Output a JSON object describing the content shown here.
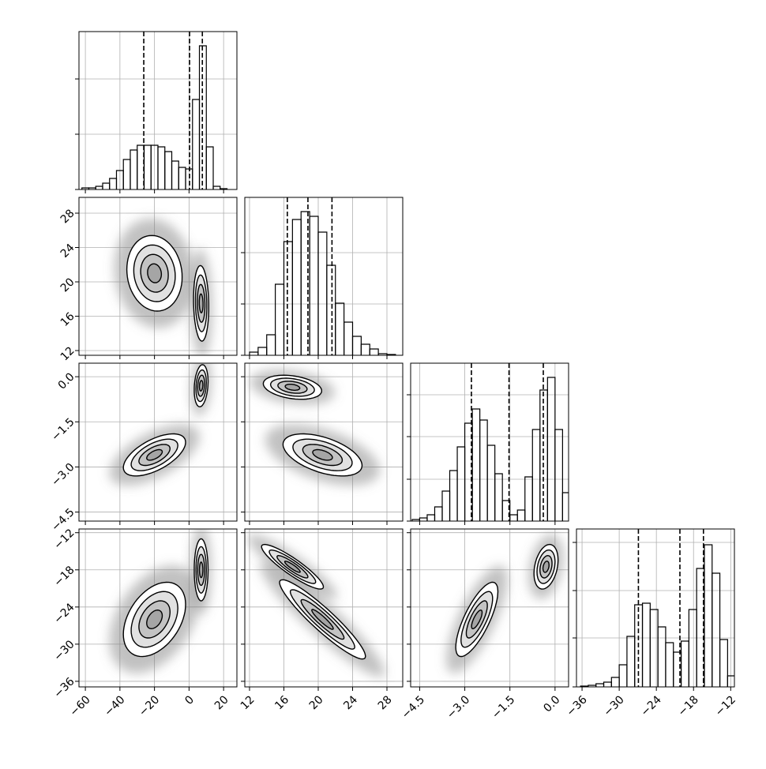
{
  "chart_data": {
    "type": "corner",
    "color": "#000000",
    "grid": true,
    "contour_levels": [
      0.5,
      1,
      1.5,
      2
    ],
    "params": [
      {
        "xlim": [
          -63.7,
          27.7
        ],
        "ticks": [
          {
            "value": -60,
            "label": "−60"
          },
          {
            "value": -40,
            "label": "−40"
          },
          {
            "value": -20,
            "label": "−20"
          },
          0,
          20
        ],
        "quantiles": [
          -26.2,
          0.3,
          7.7
        ],
        "hist": {
          "ylim": [
            0,
            1
          ],
          "yticks": [
            0,
            0.35,
            0.7
          ],
          "bins": [
            -62,
            -58,
            -54,
            -50,
            -46,
            -42,
            -38,
            -34,
            -30,
            -26,
            -22,
            -18,
            -14,
            -10,
            -6,
            -2,
            2,
            6,
            10,
            14,
            18,
            22
          ],
          "values": [
            0.01,
            0.01,
            0.02,
            0.04,
            0.07,
            0.12,
            0.19,
            0.25,
            0.28,
            0.28,
            0.28,
            0.27,
            0.24,
            0.18,
            0.14,
            0.13,
            0.57,
            0.91,
            0.27,
            0.02,
            0.005
          ]
        }
      },
      {
        "xlim": [
          11.45,
          29.84
        ],
        "ticks": [
          12,
          16,
          20,
          24,
          28
        ],
        "quantiles": [
          16.4,
          18.8,
          21.6
        ],
        "hist": {
          "ylim": [
            0,
            1
          ],
          "yticks": [
            0,
            0.325,
            0.65
          ],
          "bins": [
            12,
            13,
            14,
            15,
            16,
            17,
            18,
            19,
            20,
            21,
            22,
            23,
            24,
            25,
            26,
            27,
            28,
            29
          ],
          "values": [
            0.02,
            0.05,
            0.13,
            0.45,
            0.72,
            0.86,
            0.91,
            0.88,
            0.78,
            0.57,
            0.33,
            0.21,
            0.12,
            0.07,
            0.04,
            0.01,
            0.005
          ]
        }
      },
      {
        "xlim": [
          -4.8,
          0.45
        ],
        "ticks": [
          {
            "value": -4.5,
            "label": "−4.5"
          },
          {
            "value": -3,
            "label": "−3.0"
          },
          {
            "value": -1.5,
            "label": "−1.5"
          },
          {
            "value": 0,
            "label": "0.0"
          }
        ],
        "quantiles": [
          -2.78,
          -1.53,
          -0.39
        ],
        "hist": {
          "ylim": [
            0,
            1
          ],
          "yticks": [
            0,
            0.265,
            0.535,
            0.8
          ],
          "bins": [
            -4.75,
            -4.5,
            -4.25,
            -4,
            -3.75,
            -3.5,
            -3.25,
            -3,
            -2.75,
            -2.5,
            -2.25,
            -2,
            -1.75,
            -1.5,
            -1.25,
            -1,
            -0.75,
            -0.5,
            -0.25,
            0,
            0.25,
            0.5
          ],
          "values": [
            0.01,
            0.02,
            0.04,
            0.09,
            0.19,
            0.32,
            0.47,
            0.62,
            0.71,
            0.64,
            0.48,
            0.3,
            0.13,
            0.04,
            0.07,
            0.28,
            0.58,
            0.83,
            0.91,
            0.58,
            0.18
          ]
        }
      },
      {
        "xlim": [
          -36.9,
          -11.4
        ],
        "ticks": [
          {
            "value": -36,
            "label": "−36"
          },
          {
            "value": -30,
            "label": "−30"
          },
          {
            "value": -24,
            "label": "−24"
          },
          {
            "value": -18,
            "label": "−18"
          },
          {
            "value": -12,
            "label": "−12"
          }
        ],
        "quantiles": [
          -26.9,
          -20.2,
          -16.4
        ],
        "hist": {
          "ylim": [
            0,
            1
          ],
          "yticks": [
            0,
            0.31,
            0.61,
            0.915
          ],
          "bins": [
            -36.25,
            -35,
            -33.75,
            -32.5,
            -31.25,
            -30,
            -28.75,
            -27.5,
            -26.25,
            -25,
            -23.75,
            -22.5,
            -21.25,
            -20,
            -18.75,
            -17.5,
            -16.25,
            -15,
            -13.75,
            -12.5,
            -11.25
          ],
          "values": [
            0.005,
            0.01,
            0.02,
            0.03,
            0.06,
            0.14,
            0.32,
            0.52,
            0.53,
            0.49,
            0.38,
            0.28,
            0.22,
            0.29,
            0.49,
            0.75,
            0.9,
            0.72,
            0.3,
            0.07
          ]
        }
      }
    ],
    "pairs": [
      {
        "x_param": 0,
        "y_param": 1,
        "modes": [
          {
            "mean": [
              -20,
              21
            ],
            "sd": [
              8,
              2.2
            ],
            "rho": -0.1
          },
          {
            "mean": [
              7,
              17.5
            ],
            "sd": [
              2.2,
              2.2
            ],
            "rho": -0.1
          }
        ]
      },
      {
        "x_param": 0,
        "y_param": 2,
        "modes": [
          {
            "mean": [
              -20,
              -2.6
            ],
            "sd": [
              9,
              0.35
            ],
            "rho": 0.6
          },
          {
            "mean": [
              7,
              -0.3
            ],
            "sd": [
              2,
              0.35
            ],
            "rho": 0.2
          }
        ]
      },
      {
        "x_param": 0,
        "y_param": 3,
        "modes": [
          {
            "mean": [
              -20,
              -26
            ],
            "sd": [
              9,
              3
            ],
            "rho": 0.4
          },
          {
            "mean": [
              7,
              -18
            ],
            "sd": [
              2,
              2.5
            ],
            "rho": 0
          }
        ]
      },
      {
        "x_param": 1,
        "y_param": 2,
        "modes": [
          {
            "mean": [
              17,
              -0.35
            ],
            "sd": [
              1.7,
              0.2
            ],
            "rho": -0.3
          },
          {
            "mean": [
              20.5,
              -2.6
            ],
            "sd": [
              2.3,
              0.35
            ],
            "rho": -0.5
          }
        ]
      },
      {
        "x_param": 1,
        "y_param": 3,
        "modes": [
          {
            "mean": [
              17,
              -17.5
            ],
            "sd": [
              1.8,
              1.8
            ],
            "rho": -0.9
          },
          {
            "mean": [
              20.5,
              -26
            ],
            "sd": [
              2.5,
              3.2
            ],
            "rho": -0.93
          }
        ]
      },
      {
        "x_param": 2,
        "y_param": 3,
        "modes": [
          {
            "mean": [
              -0.3,
              -17.5
            ],
            "sd": [
              0.2,
              1.8
            ],
            "rho": 0.3
          },
          {
            "mean": [
              -2.6,
              -26
            ],
            "sd": [
              0.35,
              3
            ],
            "rho": 0.75
          }
        ]
      }
    ]
  }
}
